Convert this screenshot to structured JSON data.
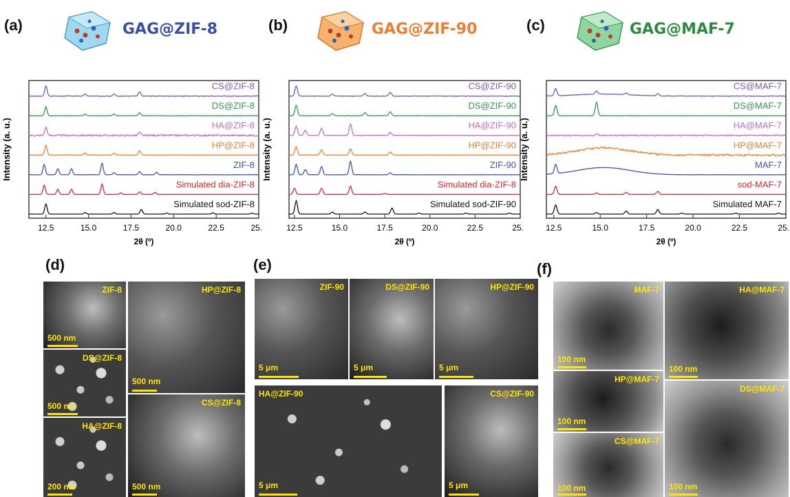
{
  "panels": {
    "a": {
      "label": "(a)",
      "title": "GAG@ZIF-8",
      "title_color": "#3a4fa3"
    },
    "b": {
      "label": "(b)",
      "title": "GAG@ZIF-90",
      "title_color": "#ee7d2e"
    },
    "c": {
      "label": "(c)",
      "title": "GAG@MAF-7",
      "title_color": "#2e8b3e"
    },
    "d": {
      "label": "(d)"
    },
    "e": {
      "label": "(e)"
    },
    "f": {
      "label": "(f)"
    }
  },
  "chart_data": [
    {
      "type": "line",
      "panel": "a",
      "ylabel": "Intensity (a. u.)",
      "xlabel": "2θ (º)",
      "xlim": [
        11.5,
        25.0
      ],
      "ticks": [
        "12.5",
        "15.0",
        "17.5",
        "20.0",
        "22.5",
        "25.0"
      ],
      "series": [
        {
          "name": "CS@ZIF-8",
          "color": "#7c55b8",
          "peaks": [
            12.5,
            14.8,
            16.5,
            18.0
          ],
          "heights": [
            1.0,
            0.2,
            0.2,
            0.4
          ],
          "noise": 0.05
        },
        {
          "name": "DS@ZIF-8",
          "color": "#2f9a4a",
          "peaks": [
            12.5,
            14.8,
            16.5,
            18.0
          ],
          "heights": [
            0.9,
            0.15,
            0.15,
            0.3
          ],
          "noise": 0.04
        },
        {
          "name": "HA@ZIF-8",
          "color": "#c46bc9",
          "peaks": [
            12.5,
            18.0
          ],
          "heights": [
            0.8,
            0.3
          ],
          "noise": 0.15
        },
        {
          "name": "HP@ZIF-8",
          "color": "#ef7f2e",
          "peaks": [
            12.5,
            14.8,
            16.5,
            18.0
          ],
          "heights": [
            1.0,
            0.2,
            0.2,
            0.4
          ],
          "noise": 0.04
        },
        {
          "name": "ZIF-8",
          "color": "#3b54b0",
          "peaks": [
            12.4,
            13.2,
            14.0,
            15.8,
            16.5,
            18.0,
            19.0
          ],
          "heights": [
            1.0,
            0.6,
            0.6,
            1.1,
            0.2,
            0.3,
            0.25
          ],
          "noise": 0.03
        },
        {
          "name": "Simulated dia-ZIF-8",
          "color": "#e0242a",
          "peaks": [
            12.4,
            13.2,
            14.0,
            15.8,
            16.9,
            18.0,
            18.9
          ],
          "heights": [
            0.9,
            0.5,
            0.5,
            1.0,
            0.15,
            0.25,
            0.2
          ],
          "noise": 0.0
        },
        {
          "name": "Simulated sod-ZIF-8",
          "color": "#111111",
          "peaks": [
            12.5,
            14.8,
            16.5,
            18.1,
            19.6,
            22.3,
            24.6
          ],
          "heights": [
            1.0,
            0.15,
            0.15,
            0.45,
            0.1,
            0.12,
            0.1
          ],
          "noise": 0.0
        }
      ]
    },
    {
      "type": "line",
      "panel": "b",
      "ylabel": "Intensity (a. u.)",
      "xlabel": "2θ (º)",
      "xlim": [
        12.2,
        25.0
      ],
      "ticks": [
        "12.5",
        "15.0",
        "17.5",
        "20.0",
        "22.5",
        "25.0"
      ],
      "series": [
        {
          "name": "CS@ZIF-90",
          "color": "#7c55b8",
          "peaks": [
            12.6,
            14.6,
            16.4,
            17.8
          ],
          "heights": [
            1.0,
            0.2,
            0.25,
            0.35
          ],
          "noise": 0.04
        },
        {
          "name": "DS@ZIF-90",
          "color": "#2f9a4a",
          "peaks": [
            12.6,
            14.6,
            16.4,
            17.8
          ],
          "heights": [
            1.0,
            0.2,
            0.3,
            0.4
          ],
          "noise": 0.04
        },
        {
          "name": "HA@ZIF-90",
          "color": "#c46bc9",
          "peaks": [
            12.6,
            13.1,
            14.0,
            15.6,
            17.8
          ],
          "heights": [
            0.9,
            0.5,
            0.7,
            1.1,
            0.3
          ],
          "noise": 0.04
        },
        {
          "name": "HP@ZIF-90",
          "color": "#ef7f2e",
          "peaks": [
            12.6,
            14.0,
            15.6,
            17.8
          ],
          "heights": [
            0.8,
            0.5,
            0.6,
            0.3
          ],
          "noise": 0.04
        },
        {
          "name": "ZIF-90",
          "color": "#3b54b0",
          "peaks": [
            12.6,
            13.1,
            14.0,
            15.6,
            17.8
          ],
          "heights": [
            1.0,
            0.5,
            0.8,
            1.3,
            0.2
          ],
          "noise": 0.02
        },
        {
          "name": "Simulated dia-ZIF-8",
          "color": "#e0242a",
          "peaks": [
            12.5,
            14.0,
            15.6,
            17.5
          ],
          "heights": [
            0.6,
            0.6,
            0.8,
            0.1
          ],
          "noise": 0.0
        },
        {
          "name": "Simulated sod-ZIF-90",
          "color": "#111111",
          "peaks": [
            12.6,
            14.6,
            16.4,
            17.9,
            19.4,
            22.0,
            24.4
          ],
          "heights": [
            1.3,
            0.2,
            0.2,
            0.6,
            0.1,
            0.1,
            0.1
          ],
          "noise": 0.0
        }
      ]
    },
    {
      "type": "line",
      "panel": "c",
      "ylabel": "Intensity (a. u.)",
      "xlabel": "2θ (º)",
      "xlim": [
        12.1,
        25.0
      ],
      "ticks": [
        "12.5",
        "15.0",
        "17.5",
        "20.0",
        "22.5",
        "25.0"
      ],
      "series": [
        {
          "name": "CS@MAF-7",
          "color": "#7c55b8",
          "peaks": [
            12.6,
            14.8,
            16.4,
            18.1
          ],
          "heights": [
            0.7,
            0.3,
            0.15,
            0.2
          ],
          "noise": 0.04,
          "hump": 0.2
        },
        {
          "name": "DS@MAF-7",
          "color": "#2f9a4a",
          "peaks": [
            12.6,
            14.8
          ],
          "heights": [
            1.0,
            1.3
          ],
          "noise": 0.03
        },
        {
          "name": "HA@MAF-7",
          "color": "#c46bc9",
          "peaks": [
            14.8
          ],
          "heights": [
            0.15
          ],
          "noise": 0.1
        },
        {
          "name": "HP@MAF-7",
          "color": "#ef7f2e",
          "peaks": [],
          "heights": [],
          "noise": 0.18,
          "hump": 0.7
        },
        {
          "name": "MAF-7",
          "color": "#3b54b0",
          "peaks": [
            12.6
          ],
          "heights": [
            0.9
          ],
          "noise": 0.02,
          "hump": 0.7
        },
        {
          "name": "sod-MAF-7",
          "color": "#e0242a",
          "peaks": [
            12.6,
            14.8,
            16.4,
            18.1
          ],
          "heights": [
            0.8,
            0.15,
            0.2,
            0.3
          ],
          "noise": 0.0
        },
        {
          "name": "Simulated MAF-7",
          "color": "#111111",
          "peaks": [
            12.6,
            14.8,
            16.4,
            18.1,
            19.4,
            22.3,
            24.6
          ],
          "heights": [
            0.9,
            0.15,
            0.3,
            0.45,
            0.1,
            0.1,
            0.1
          ],
          "noise": 0.0
        }
      ]
    }
  ],
  "micrographs": {
    "d": [
      {
        "label": "ZIF-8",
        "scale": "500 nm"
      },
      {
        "label": "HP@ZIF-8",
        "scale": "500 nm"
      },
      {
        "label": "DS@ZIF-8",
        "scale": "500 nm"
      },
      {
        "label": "HA@ZIF-8",
        "scale": "200 nm"
      },
      {
        "label": "CS@ZIF-8",
        "scale": "500 nm"
      }
    ],
    "e": [
      {
        "label": "ZIF-90",
        "scale": "5 μm"
      },
      {
        "label": "DS@ZIF-90",
        "scale": "5 μm"
      },
      {
        "label": "HP@ZIF-90",
        "scale": "5 μm"
      },
      {
        "label": "HA@ZIF-90",
        "scale": "5 μm"
      },
      {
        "label": "CS@ZIF-90",
        "scale": "5 μm"
      }
    ],
    "f": [
      {
        "label": "MAF-7",
        "scale": "100 nm"
      },
      {
        "label": "HA@MAF-7",
        "scale": "100 nm"
      },
      {
        "label": "HP@MAF-7",
        "scale": "100 nm"
      },
      {
        "label": "DS@MAF-7",
        "scale": "100 nm"
      },
      {
        "label": "CS@MAF-7",
        "scale": "100 nm"
      }
    ]
  }
}
